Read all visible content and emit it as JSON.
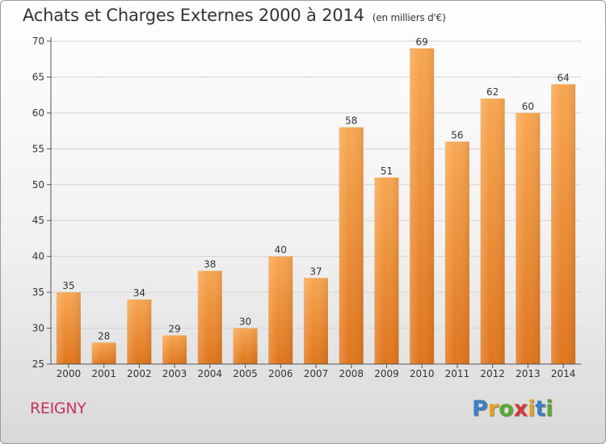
{
  "title": "Achats et Charges Externes 2000 à 2014",
  "unit": "(en milliers d'€)",
  "commune": "REIGNY",
  "logo": {
    "letters": [
      "P",
      "r",
      "o",
      "x",
      "i",
      "t",
      "i"
    ],
    "colors": [
      "#3a7fc4",
      "#e8a020",
      "#5aa832",
      "#d63a3a",
      "#e8a020",
      "#3a7fc4",
      "#5aa832"
    ]
  },
  "chart_data": {
    "type": "bar",
    "categories": [
      "2000",
      "2001",
      "2002",
      "2003",
      "2004",
      "2005",
      "2006",
      "2007",
      "2008",
      "2009",
      "2010",
      "2011",
      "2012",
      "2013",
      "2014"
    ],
    "values": [
      35,
      28,
      34,
      29,
      38,
      30,
      40,
      37,
      58,
      51,
      69,
      56,
      62,
      60,
      64
    ],
    "ylim": [
      25,
      70
    ],
    "yticks": [
      25,
      30,
      35,
      40,
      45,
      50,
      55,
      60,
      65,
      70
    ],
    "grid": true,
    "bar_color": "#f08a2c"
  }
}
